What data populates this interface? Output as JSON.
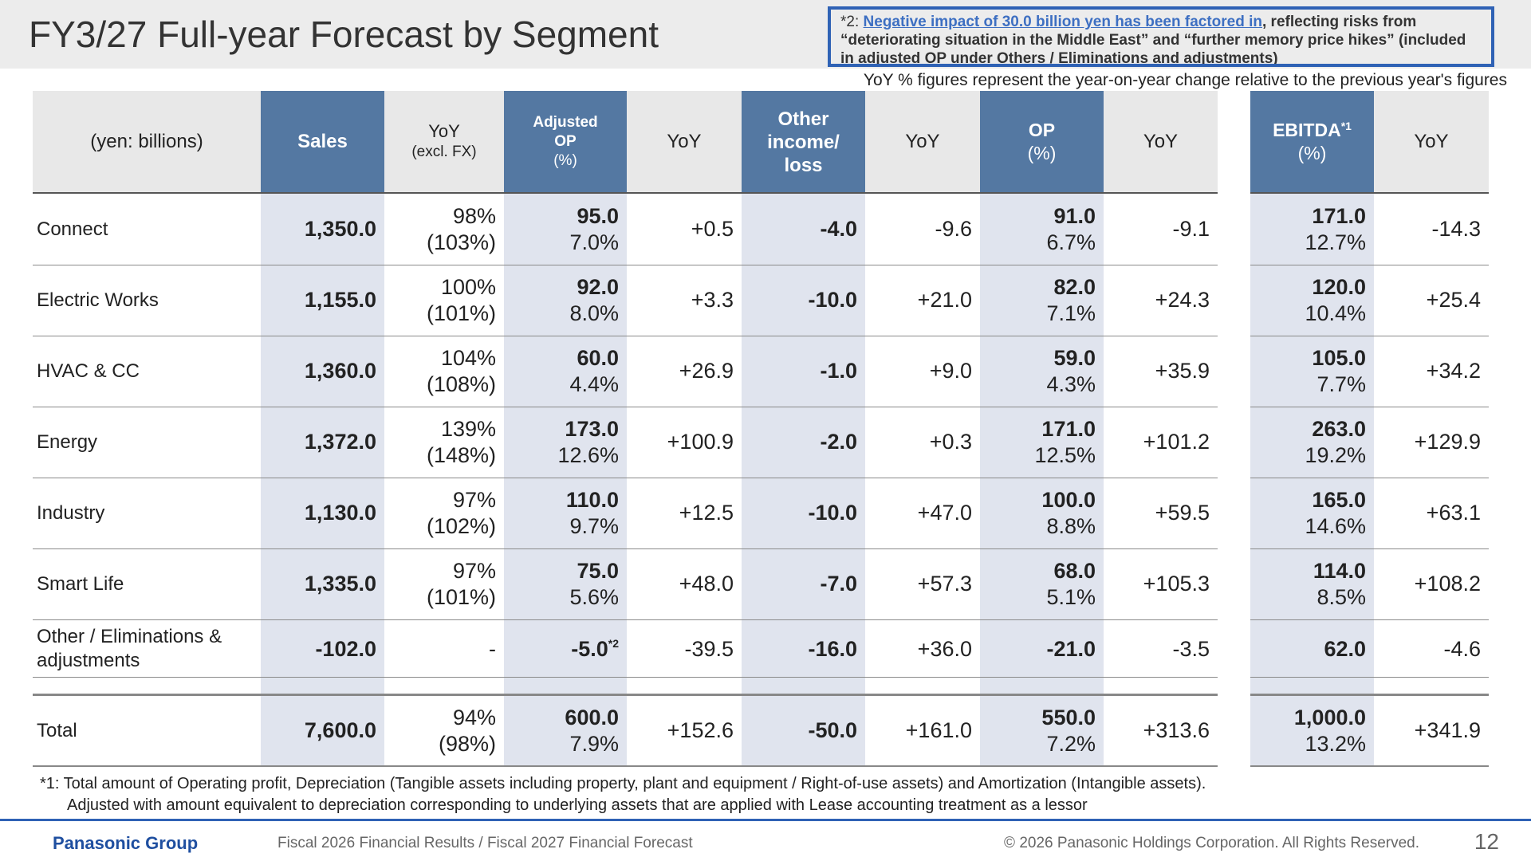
{
  "title": "FY3/27 Full-year Forecast by Segment",
  "note_box": {
    "lead": "*2: ",
    "highlight": "Negative impact of 30.0 billion yen has been factored in",
    "rest": ", reflecting risks from “deteriorating situation in the Middle East” and “further memory price hikes” (included in adjusted OP under Others / Eliminations and adjustments)"
  },
  "yoy_note": "YoY % figures represent the year-on-year change relative to the previous year's figures",
  "headers": {
    "unit": "(yen: billions)",
    "sales": "Sales",
    "sales_yoy": "YoY",
    "sales_yoy_sub": "(excl. FX)",
    "adj_op": "Adjusted",
    "adj_op_2": "OP",
    "adj_op_sub": "(%)",
    "adj_op_yoy": "YoY",
    "other_1": "Other",
    "other_2": "income/",
    "other_3": "loss",
    "other_yoy": "YoY",
    "op": "OP",
    "op_sub": "(%)",
    "op_yoy": "YoY",
    "ebitda": "EBITDA",
    "ebitda_mark": "*1",
    "ebitda_sub": "(%)",
    "ebitda_yoy": "YoY"
  },
  "rows": [
    {
      "name": "Connect",
      "sales": "1,350.0",
      "yoy": "98%",
      "yoy_fx": "(103%)",
      "adj_op": "95.0",
      "adj_pct": "7.0%",
      "adj_yoy": "+0.5",
      "other": "-4.0",
      "other_yoy": "-9.6",
      "op": "91.0",
      "op_pct": "6.7%",
      "op_yoy": "-9.1",
      "ebitda": "171.0",
      "ebitda_pct": "12.7%",
      "ebitda_yoy": "-14.3"
    },
    {
      "name": "Electric Works",
      "sales": "1,155.0",
      "yoy": "100%",
      "yoy_fx": "(101%)",
      "adj_op": "92.0",
      "adj_pct": "8.0%",
      "adj_yoy": "+3.3",
      "other": "-10.0",
      "other_yoy": "+21.0",
      "op": "82.0",
      "op_pct": "7.1%",
      "op_yoy": "+24.3",
      "ebitda": "120.0",
      "ebitda_pct": "10.4%",
      "ebitda_yoy": "+25.4"
    },
    {
      "name": "HVAC & CC",
      "sales": "1,360.0",
      "yoy": "104%",
      "yoy_fx": "(108%)",
      "adj_op": "60.0",
      "adj_pct": "4.4%",
      "adj_yoy": "+26.9",
      "other": "-1.0",
      "other_yoy": "+9.0",
      "op": "59.0",
      "op_pct": "4.3%",
      "op_yoy": "+35.9",
      "ebitda": "105.0",
      "ebitda_pct": "7.7%",
      "ebitda_yoy": "+34.2"
    },
    {
      "name": "Energy",
      "sales": "1,372.0",
      "yoy": "139%",
      "yoy_fx": "(148%)",
      "adj_op": "173.0",
      "adj_pct": "12.6%",
      "adj_yoy": "+100.9",
      "other": "-2.0",
      "other_yoy": "+0.3",
      "op": "171.0",
      "op_pct": "12.5%",
      "op_yoy": "+101.2",
      "ebitda": "263.0",
      "ebitda_pct": "19.2%",
      "ebitda_yoy": "+129.9"
    },
    {
      "name": "Industry",
      "sales": "1,130.0",
      "yoy": "97%",
      "yoy_fx": "(102%)",
      "adj_op": "110.0",
      "adj_pct": "9.7%",
      "adj_yoy": "+12.5",
      "other": "-10.0",
      "other_yoy": "+47.0",
      "op": "100.0",
      "op_pct": "8.8%",
      "op_yoy": "+59.5",
      "ebitda": "165.0",
      "ebitda_pct": "14.6%",
      "ebitda_yoy": "+63.1"
    },
    {
      "name": "Smart Life",
      "sales": "1,335.0",
      "yoy": "97%",
      "yoy_fx": "(101%)",
      "adj_op": "75.0",
      "adj_pct": "5.6%",
      "adj_yoy": "+48.0",
      "other": "-7.0",
      "other_yoy": "+57.3",
      "op": "68.0",
      "op_pct": "5.1%",
      "op_yoy": "+105.3",
      "ebitda": "114.0",
      "ebitda_pct": "8.5%",
      "ebitda_yoy": "+108.2"
    }
  ],
  "other_row": {
    "name_1": "Other / Eliminations &",
    "name_2": "adjustments",
    "sales": "-102.0",
    "yoy": "-",
    "adj_op": "-5.0",
    "adj_mark": "*2",
    "adj_yoy": "-39.5",
    "other": "-16.0",
    "other_yoy": "+36.0",
    "op": "-21.0",
    "op_yoy": "-3.5",
    "ebitda": "62.0",
    "ebitda_yoy": "-4.6"
  },
  "total_row": {
    "name": "Total",
    "sales": "7,600.0",
    "yoy": "94%",
    "yoy_fx": "(98%)",
    "adj_op": "600.0",
    "adj_pct": "7.9%",
    "adj_yoy": "+152.6",
    "other": "-50.0",
    "other_yoy": "+161.0",
    "op": "550.0",
    "op_pct": "7.2%",
    "op_yoy": "+313.6",
    "ebitda": "1,000.0",
    "ebitda_pct": "13.2%",
    "ebitda_yoy": "+341.9"
  },
  "footnote_1": "*1: Total amount of Operating profit, Depreciation (Tangible assets including property, plant and equipment / Right-of-use assets) and Amortization (Intangible assets).",
  "footnote_2": "Adjusted with amount equivalent to depreciation corresponding to underlying assets that are applied with Lease accounting treatment as a lessor",
  "footer": {
    "logo": "Panasonic Group",
    "subtitle": "Fiscal 2026 Financial Results / Fiscal 2027 Financial Forecast",
    "copyright": "© 2026 Panasonic Holdings Corporation. All Rights Reserved.",
    "page": "12"
  }
}
